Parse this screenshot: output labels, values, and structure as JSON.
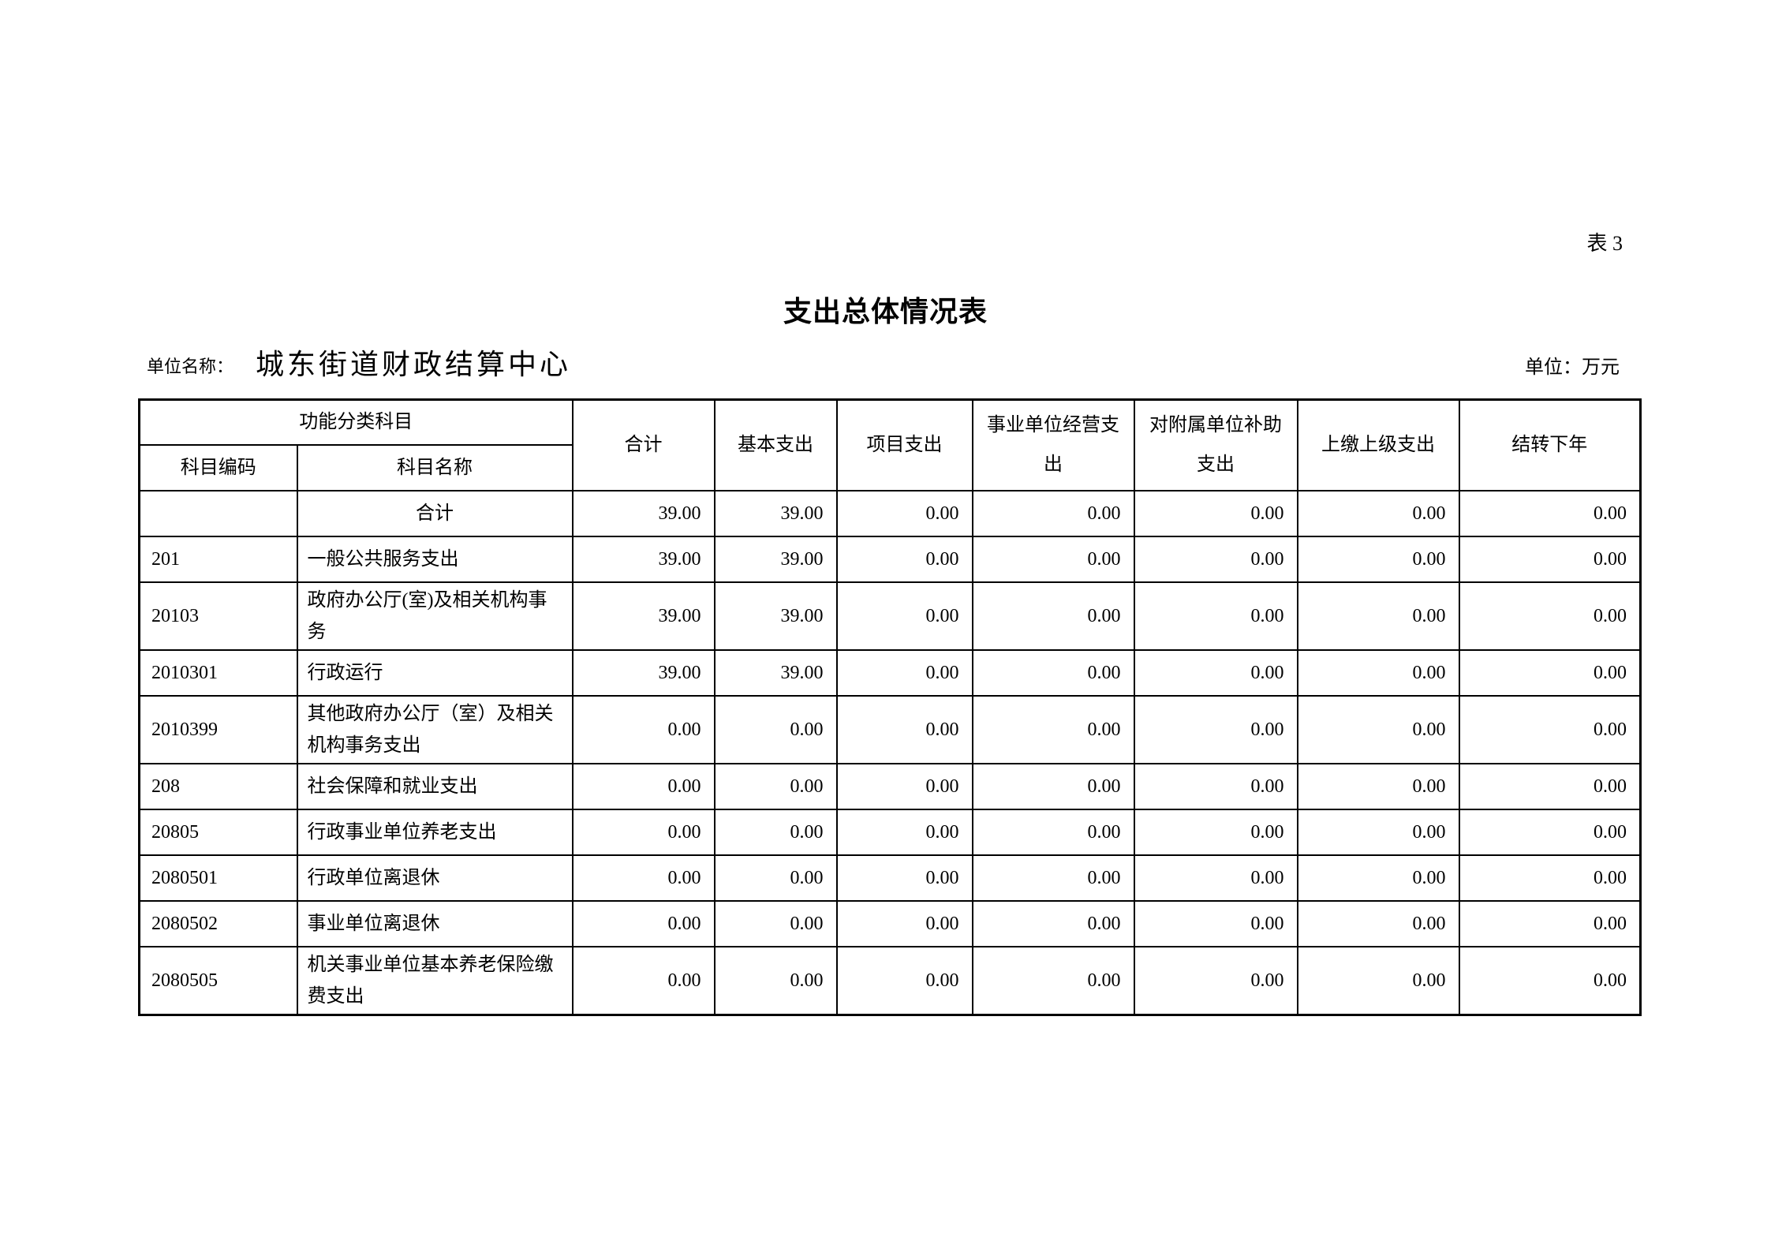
{
  "page": {
    "sheet_label": "表 3",
    "title": "支出总体情况表",
    "unit_name_label": "单位名称：",
    "unit_name_value": "城东街道财政结算中心",
    "unit_of_measure": "单位：万元"
  },
  "table": {
    "header": {
      "function_group": "功能分类科目",
      "subject_code": "科目编码",
      "subject_name": "科目名称",
      "value_columns": [
        "合计",
        "基本支出",
        "项目支出",
        "事业单位经营支出",
        "对附属单位补助支出",
        "上缴上级支出",
        "结转下年"
      ]
    },
    "rows": [
      {
        "code": "",
        "name": "合计",
        "values": [
          "39.00",
          "39.00",
          "0.00",
          "0.00",
          "0.00",
          "0.00",
          "0.00"
        ]
      },
      {
        "code": "201",
        "name": "一般公共服务支出",
        "values": [
          "39.00",
          "39.00",
          "0.00",
          "0.00",
          "0.00",
          "0.00",
          "0.00"
        ]
      },
      {
        "code": "20103",
        "name": "政府办公厅(室)及相关机构事务",
        "values": [
          "39.00",
          "39.00",
          "0.00",
          "0.00",
          "0.00",
          "0.00",
          "0.00"
        ]
      },
      {
        "code": "2010301",
        "name": "行政运行",
        "values": [
          "39.00",
          "39.00",
          "0.00",
          "0.00",
          "0.00",
          "0.00",
          "0.00"
        ]
      },
      {
        "code": "2010399",
        "name": "其他政府办公厅（室）及相关机构事务支出",
        "values": [
          "0.00",
          "0.00",
          "0.00",
          "0.00",
          "0.00",
          "0.00",
          "0.00"
        ]
      },
      {
        "code": "208",
        "name": "社会保障和就业支出",
        "values": [
          "0.00",
          "0.00",
          "0.00",
          "0.00",
          "0.00",
          "0.00",
          "0.00"
        ]
      },
      {
        "code": "20805",
        "name": "行政事业单位养老支出",
        "values": [
          "0.00",
          "0.00",
          "0.00",
          "0.00",
          "0.00",
          "0.00",
          "0.00"
        ]
      },
      {
        "code": "2080501",
        "name": "行政单位离退休",
        "values": [
          "0.00",
          "0.00",
          "0.00",
          "0.00",
          "0.00",
          "0.00",
          "0.00"
        ]
      },
      {
        "code": "2080502",
        "name": "事业单位离退休",
        "values": [
          "0.00",
          "0.00",
          "0.00",
          "0.00",
          "0.00",
          "0.00",
          "0.00"
        ]
      },
      {
        "code": "2080505",
        "name": "机关事业单位基本养老保险缴费支出",
        "values": [
          "0.00",
          "0.00",
          "0.00",
          "0.00",
          "0.00",
          "0.00",
          "0.00"
        ]
      }
    ]
  }
}
